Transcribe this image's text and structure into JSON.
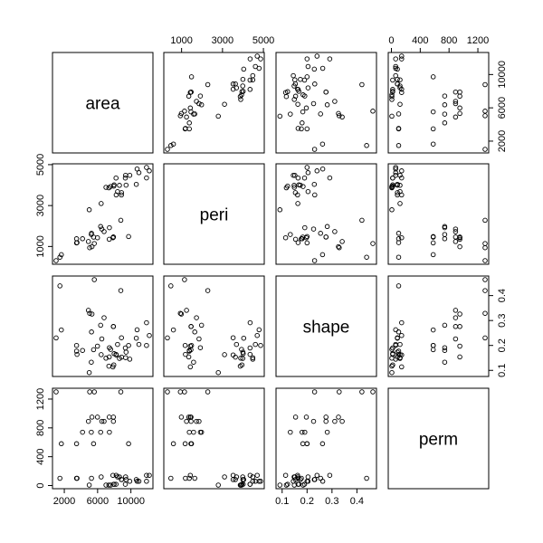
{
  "chart_data": {
    "type": "scatter",
    "title": "",
    "grid": false,
    "legend": "none",
    "colors": {
      "background": "#ffffff",
      "ink": "#000000"
    },
    "variables": [
      {
        "name": "area",
        "range": [
          1016,
          12212
        ],
        "ticks": [
          2000,
          6000,
          10000
        ],
        "tick_labels": [
          "2000",
          "6000",
          "10000"
        ],
        "top_ticks": [],
        "top_tick_labels": [],
        "right_ticks": [],
        "right_tick_labels": []
      },
      {
        "name": "peri",
        "range": [
          308,
          4864
        ],
        "ticks": [
          1000,
          3000,
          5000
        ],
        "tick_labels": [
          "1000",
          "3000",
          "5000"
        ]
      },
      {
        "name": "shape",
        "range": [
          0.09,
          0.464
        ],
        "ticks": [
          0.1,
          0.2,
          0.3,
          0.4
        ],
        "tick_labels": [
          "0.1",
          "0.2",
          "0.3",
          "0.4"
        ]
      },
      {
        "name": "perm",
        "range": [
          6.3,
          1300
        ],
        "ticks": [
          0,
          400,
          800,
          1200
        ],
        "tick_labels": [
          "0",
          "400",
          "800",
          "1200"
        ]
      }
    ],
    "axis_labels": {
      "bottom": [
        {
          "var": 0,
          "ticks": [
            2000,
            6000,
            10000
          ],
          "labels": [
            "2000",
            "6000",
            "10000"
          ]
        },
        {
          "var": 2,
          "ticks": [
            0.1,
            0.2,
            0.3,
            0.4
          ],
          "labels": [
            "0.1",
            "0.2",
            "0.3",
            "0.4"
          ]
        }
      ],
      "top": [
        {
          "var": 1,
          "ticks": [
            1000,
            3000,
            5000
          ],
          "labels": [
            "1000",
            "3000",
            "5000"
          ]
        },
        {
          "var": 3,
          "ticks": [
            0,
            400,
            800,
            1200
          ],
          "labels": [
            "0",
            "400",
            "800",
            "1200"
          ]
        }
      ],
      "left": [
        {
          "var": 1,
          "ticks": [
            1000,
            3000,
            5000
          ],
          "labels": [
            "1000",
            "3000",
            "5000"
          ]
        },
        {
          "var": 3,
          "ticks": [
            0,
            400,
            800,
            1200
          ],
          "labels": [
            "0",
            "400",
            "800",
            "1200"
          ]
        }
      ],
      "right": [
        {
          "var": 0,
          "ticks": [
            2000,
            6000,
            10000
          ],
          "labels": [
            "2000",
            "6000",
            "10000"
          ]
        },
        {
          "var": 2,
          "ticks": [
            0.1,
            0.2,
            0.3,
            0.4
          ],
          "labels": [
            "0.1",
            "0.2",
            "0.3",
            "0.4"
          ]
        }
      ]
    },
    "observations": [
      {
        "area": 4990,
        "peri": 2792,
        "shape": 0.091,
        "perm": 6.3
      },
      {
        "area": 7002,
        "peri": 3893,
        "shape": 0.149,
        "perm": 6.3
      },
      {
        "area": 7558,
        "peri": 3931,
        "shape": 0.184,
        "perm": 6.3
      },
      {
        "area": 7352,
        "peri": 3869,
        "shape": 0.117,
        "perm": 6.3
      },
      {
        "area": 7943,
        "peri": 3949,
        "shape": 0.122,
        "perm": 17.1
      },
      {
        "area": 7979,
        "peri": 4010,
        "shape": 0.167,
        "perm": 17.1
      },
      {
        "area": 9333,
        "peri": 4346,
        "shape": 0.19,
        "perm": 17.1
      },
      {
        "area": 8209,
        "peri": 4345,
        "shape": 0.164,
        "perm": 17.1
      },
      {
        "area": 8393,
        "peri": 3682,
        "shape": 0.204,
        "perm": 119
      },
      {
        "area": 6425,
        "peri": 3099,
        "shape": 0.163,
        "perm": 119
      },
      {
        "area": 9364,
        "peri": 4480,
        "shape": 0.151,
        "perm": 119
      },
      {
        "area": 8624,
        "peri": 3986,
        "shape": 0.148,
        "perm": 119
      },
      {
        "area": 10651,
        "peri": 4037,
        "shape": 0.229,
        "perm": 82.4
      },
      {
        "area": 8868,
        "peri": 3519,
        "shape": 0.231,
        "perm": 82.4
      },
      {
        "area": 9417,
        "peri": 3999,
        "shape": 0.173,
        "perm": 82.4
      },
      {
        "area": 8874,
        "peri": 3629,
        "shape": 0.153,
        "perm": 82.4
      },
      {
        "area": 10962,
        "peri": 4609,
        "shape": 0.204,
        "perm": 58.6
      },
      {
        "area": 10743,
        "peri": 4788,
        "shape": 0.263,
        "perm": 58.6
      },
      {
        "area": 11878,
        "peri": 4864,
        "shape": 0.2,
        "perm": 58.6
      },
      {
        "area": 9867,
        "peri": 4479,
        "shape": 0.145,
        "perm": 58.6
      },
      {
        "area": 7838,
        "peri": 1428,
        "shape": 0.114,
        "perm": 142
      },
      {
        "area": 11876,
        "peri": 4353,
        "shape": 0.291,
        "perm": 142
      },
      {
        "area": 12212,
        "peri": 4698,
        "shape": 0.24,
        "perm": 142
      },
      {
        "area": 8233,
        "peri": 3518,
        "shape": 0.162,
        "perm": 142
      },
      {
        "area": 6360,
        "peri": 1977,
        "shape": 0.281,
        "perm": 740
      },
      {
        "area": 4193,
        "peri": 1379,
        "shape": 0.18,
        "perm": 740
      },
      {
        "area": 7416,
        "peri": 1916,
        "shape": 0.191,
        "perm": 740
      },
      {
        "area": 5246,
        "peri": 1585,
        "shape": 0.133,
        "perm": 740
      },
      {
        "area": 6509,
        "peri": 1851,
        "shape": 0.226,
        "perm": 890
      },
      {
        "area": 4895,
        "peri": 1240,
        "shape": 0.341,
        "perm": 890
      },
      {
        "area": 6775,
        "peri": 1728,
        "shape": 0.311,
        "perm": 890
      },
      {
        "area": 7894,
        "peri": 1461,
        "shape": 0.276,
        "perm": 890
      },
      {
        "area": 5980,
        "peri": 1427,
        "shape": 0.197,
        "perm": 950
      },
      {
        "area": 5318,
        "peri": 991,
        "shape": 0.326,
        "perm": 950
      },
      {
        "area": 7392,
        "peri": 1351,
        "shape": 0.154,
        "perm": 950
      },
      {
        "area": 7894,
        "peri": 1461,
        "shape": 0.276,
        "perm": 950
      },
      {
        "area": 3469,
        "peri": 1377,
        "shape": 0.177,
        "perm": 100
      },
      {
        "area": 1468,
        "peri": 476,
        "shape": 0.439,
        "perm": 100
      },
      {
        "area": 3524,
        "peri": 1189,
        "shape": 0.164,
        "perm": 100
      },
      {
        "area": 5267,
        "peri": 1645,
        "shape": 0.254,
        "perm": 100
      },
      {
        "area": 5048,
        "peri": 941,
        "shape": 0.329,
        "perm": 1300
      },
      {
        "area": 1016,
        "peri": 308,
        "shape": 0.23,
        "perm": 1300
      },
      {
        "area": 5605,
        "peri": 1146,
        "shape": 0.464,
        "perm": 1300
      },
      {
        "area": 8793,
        "peri": 2280,
        "shape": 0.42,
        "perm": 1300
      },
      {
        "area": 3475,
        "peri": 1174,
        "shape": 0.2,
        "perm": 580
      },
      {
        "area": 1651,
        "peri": 598,
        "shape": 0.262,
        "perm": 580
      },
      {
        "area": 5514,
        "peri": 1456,
        "shape": 0.183,
        "perm": 580
      },
      {
        "area": 9718,
        "peri": 1486,
        "shape": 0.2,
        "perm": 580
      }
    ]
  }
}
